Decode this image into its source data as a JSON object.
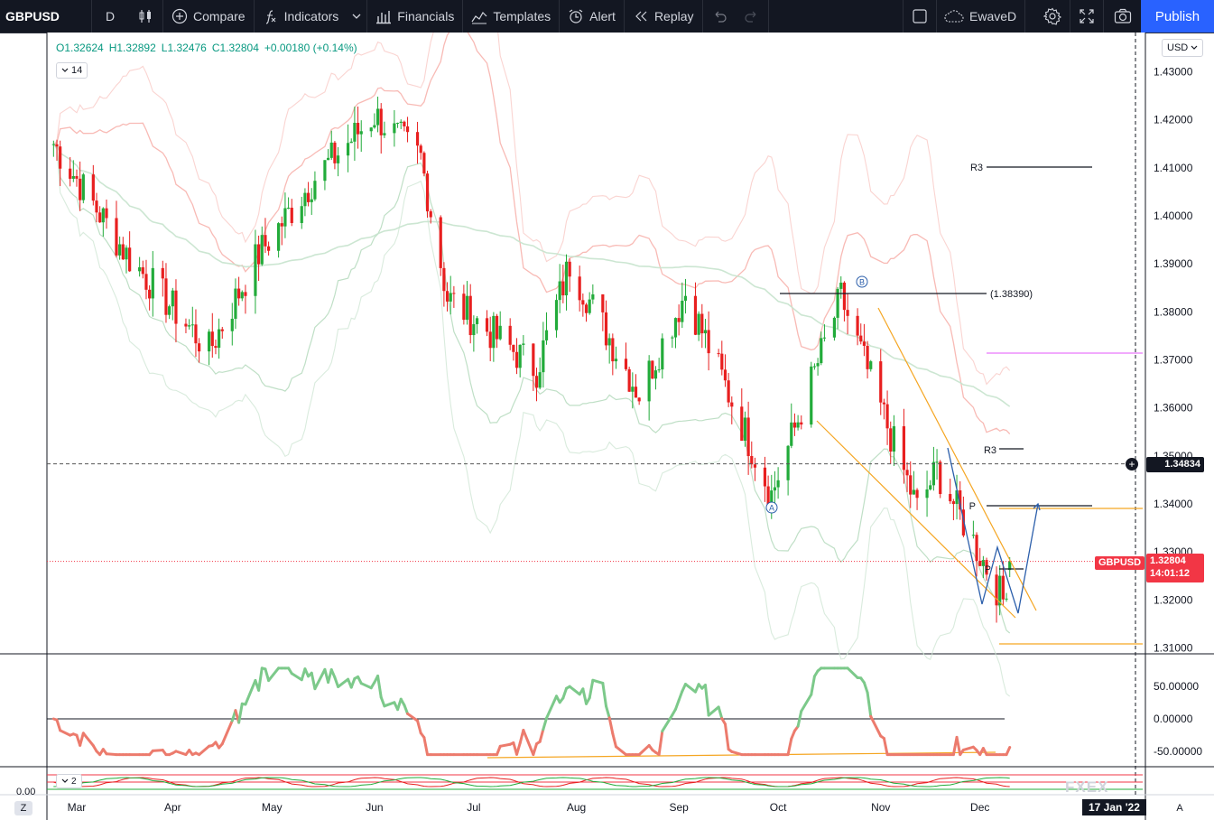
{
  "toolbar": {
    "symbol": "GBPUSD",
    "interval": "D",
    "compare_label": "Compare",
    "indicators_label": "Indicators",
    "financials_label": "Financials",
    "templates_label": "Templates",
    "alert_label": "Alert",
    "replay_label": "Replay",
    "layout_name": "EwaveD",
    "publish_label": "Publish"
  },
  "legend": {
    "open": "O1.32624",
    "high": "H1.32892",
    "low": "L1.32476",
    "close": "C1.32804",
    "change": "+0.00180 (+0.14%)",
    "length_value": "14",
    "osc2_value": "2"
  },
  "currency": "USD",
  "price_axis": [
    "1.43000",
    "1.42000",
    "1.41000",
    "1.40000",
    "1.39000",
    "1.38000",
    "1.37000",
    "1.36000",
    "1.35000",
    "1.34000",
    "1.33000",
    "1.32000",
    "1.31000"
  ],
  "osc_axis": [
    "50.00000",
    "0.00000",
    "-50.00000"
  ],
  "osc2_axis_zero": "0.00",
  "time_axis": [
    "Mar",
    "Apr",
    "May",
    "Jun",
    "Jul",
    "Aug",
    "Sep",
    "Oct",
    "Nov",
    "Dec"
  ],
  "current_price": {
    "symbol": "GBPUSD",
    "price": "1.32804",
    "countdown": "14:01:12"
  },
  "crosshair": {
    "price": "1.34834",
    "date": "17 Jan '22"
  },
  "annotations": {
    "r3_upper": "R3",
    "r3_lower": "R3",
    "pivot_upper": "P",
    "pivot_lower": "P",
    "price_label": "(1.38390)",
    "wave_a": "A",
    "wave_b": "B"
  },
  "scale_modes": {
    "left": "Z",
    "right": "A"
  },
  "watermark": "FXEX",
  "colors": {
    "bull": "#22ab3a",
    "bear": "#e81f1f",
    "toolbar_bg": "#131722",
    "accent": "#2962ff",
    "osc_up": "#7cc98a",
    "osc_down": "#ec7b6d",
    "wedge": "#f5a623",
    "projection": "#2c5fab"
  },
  "chart_data": {
    "type": "candlestick",
    "symbol": "GBPUSD",
    "interval": "D",
    "ylim": [
      1.305,
      1.437
    ],
    "x_range": [
      "2021-02-22",
      "2022-01-17"
    ],
    "anchors": [
      {
        "date": "2021-02-24",
        "close": 1.415
      },
      {
        "date": "2021-03-18",
        "close": 1.392
      },
      {
        "date": "2021-04-12",
        "close": 1.372
      },
      {
        "date": "2021-04-27",
        "close": 1.392
      },
      {
        "date": "2021-05-14",
        "close": 1.408
      },
      {
        "date": "2021-06-01",
        "close": 1.421
      },
      {
        "date": "2021-06-15",
        "close": 1.412
      },
      {
        "date": "2021-06-23",
        "close": 1.383
      },
      {
        "date": "2021-07-20",
        "close": 1.368
      },
      {
        "date": "2021-07-30",
        "close": 1.39
      },
      {
        "date": "2021-08-20",
        "close": 1.363
      },
      {
        "date": "2021-09-03",
        "close": 1.384
      },
      {
        "date": "2021-09-29",
        "close": 1.342
      },
      {
        "date": "2021-10-20",
        "close": 1.383
      },
      {
        "date": "2021-11-12",
        "close": 1.339
      },
      {
        "date": "2021-11-18",
        "close": 1.347
      },
      {
        "date": "2021-12-08",
        "close": 1.32
      },
      {
        "date": "2021-12-10",
        "close": 1.328
      }
    ],
    "last_ohlc": {
      "open": 1.32624,
      "high": 1.32892,
      "low": 1.32476,
      "close": 1.32804
    }
  }
}
